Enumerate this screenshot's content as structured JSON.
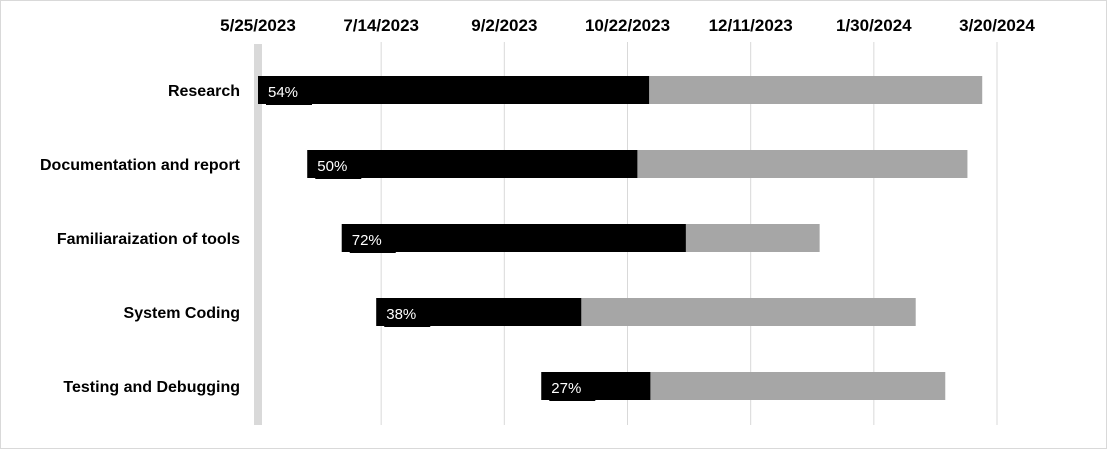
{
  "chart_data": {
    "type": "bar",
    "title": "",
    "xlabel": "",
    "ylabel": "",
    "x_axis": {
      "position": "top",
      "ticks": [
        "5/25/2023",
        "7/14/2023",
        "9/2/2023",
        "10/22/2023",
        "12/11/2023",
        "1/30/2024",
        "3/20/2024"
      ],
      "min": "5/25/2023",
      "max": "3/20/2024",
      "gridlines": true
    },
    "categories": [
      "Research",
      "Documentation and report",
      "Familiaraization of tools",
      "System Coding",
      "Testing and Debugging"
    ],
    "tasks": [
      {
        "name": "Research",
        "start": "5/25/2023",
        "end": "3/14/2024",
        "progress_label": "54%",
        "progress": 0.54
      },
      {
        "name": "Documentation and report",
        "start": "6/14/2023",
        "end": "3/8/2024",
        "progress_label": "50%",
        "progress": 0.5
      },
      {
        "name": "Familiaraization of tools",
        "start": "6/28/2023",
        "end": "1/8/2024",
        "progress_label": "72%",
        "progress": 0.72
      },
      {
        "name": "System Coding",
        "start": "7/12/2023",
        "end": "2/16/2024",
        "progress_label": "38%",
        "progress": 0.38
      },
      {
        "name": "Testing and Debugging",
        "start": "9/17/2023",
        "end": "2/28/2024",
        "progress_label": "27%",
        "progress": 0.27
      }
    ],
    "colors": {
      "complete": "#000000",
      "remaining": "#a6a6a6",
      "grid": "#d9d9d9",
      "axis": "#d9d9d9",
      "label_text": "#ffffff"
    }
  }
}
